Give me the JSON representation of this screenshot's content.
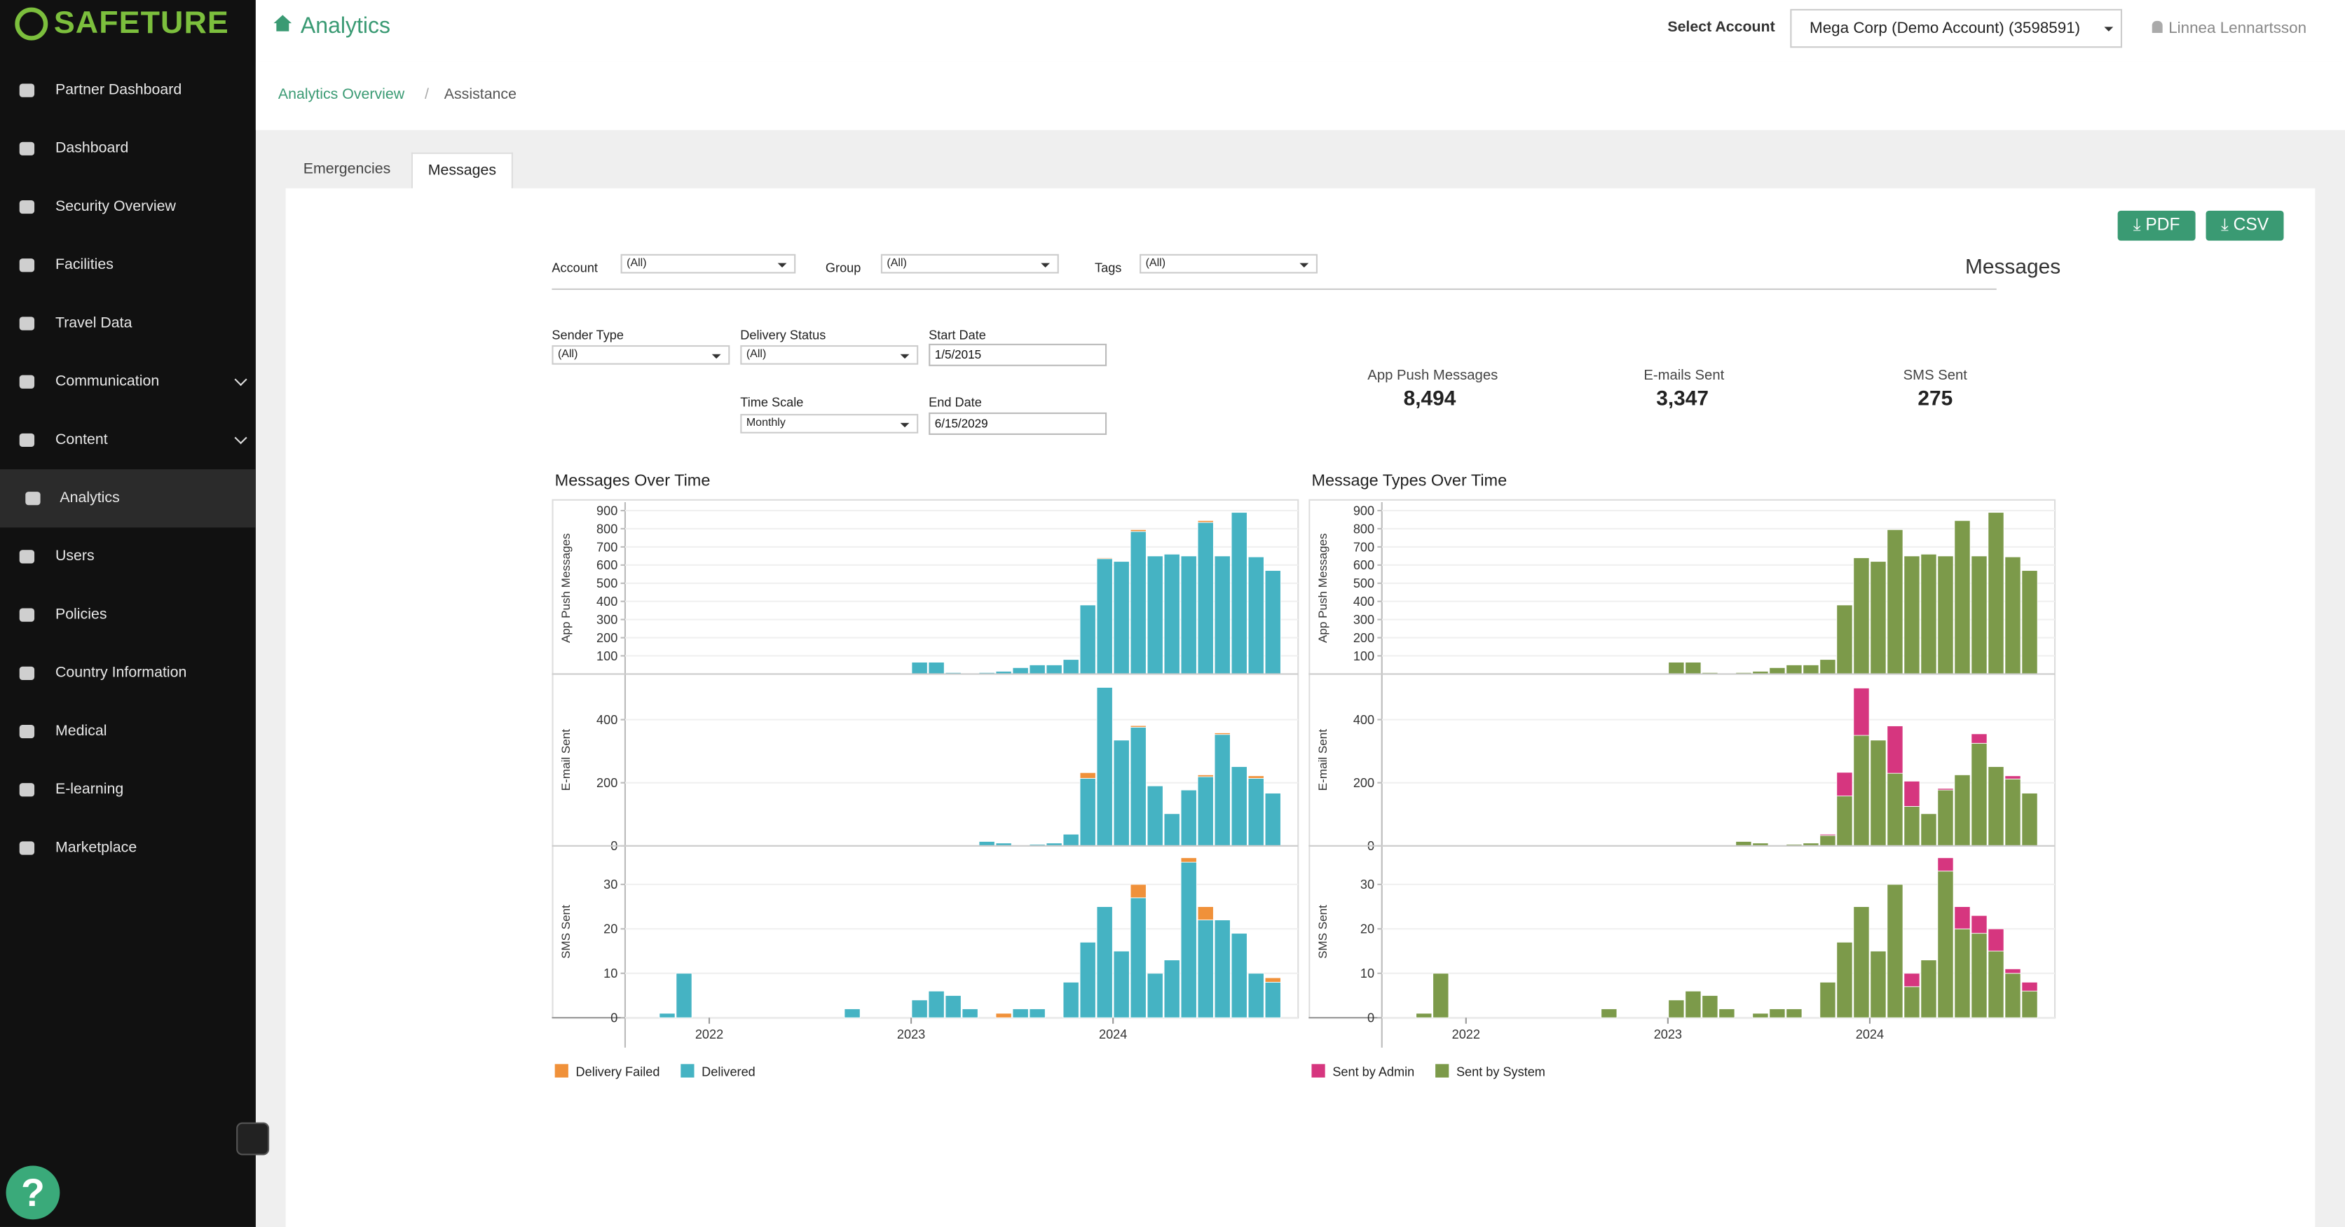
{
  "sidebar": {
    "logo": "SAFETURE",
    "items": [
      {
        "label": "Partner Dashboard"
      },
      {
        "label": "Dashboard"
      },
      {
        "label": "Security Overview"
      },
      {
        "label": "Facilities"
      },
      {
        "label": "Travel Data"
      },
      {
        "label": "Communication",
        "expandable": true
      },
      {
        "label": "Content",
        "expandable": true
      },
      {
        "label": "Analytics",
        "active": true
      },
      {
        "label": "Users"
      },
      {
        "label": "Policies"
      },
      {
        "label": "Country Information"
      },
      {
        "label": "Medical"
      },
      {
        "label": "E-learning"
      },
      {
        "label": "Marketplace"
      }
    ],
    "help": "?"
  },
  "header": {
    "title": "Analytics",
    "select_label": "Select Account",
    "account": "Mega Corp (Demo Account) (3598591)",
    "user": "Linnea Lennartsson"
  },
  "breadcrumb": [
    "Analytics Overview",
    "Assistance"
  ],
  "tabs": [
    "Emergencies",
    "Messages"
  ],
  "buttons": [
    "PDF",
    "CSV"
  ],
  "report_title": "Messages",
  "filters": [
    {
      "label": "Account",
      "value": "(All)"
    },
    {
      "label": "Group",
      "value": "(All)"
    },
    {
      "label": "Tags",
      "value": "(All)"
    },
    {
      "label": "Sender Type",
      "value": "(All)"
    },
    {
      "label": "Delivery Status",
      "value": "(All)"
    },
    {
      "label": "Start Date",
      "value": "1/5/2015"
    },
    {
      "label": "Time Scale",
      "value": "Monthly"
    },
    {
      "label": "End Date",
      "value": "6/15/2029"
    }
  ],
  "stats": [
    {
      "label": "App Push Messages",
      "value": "8,494"
    },
    {
      "label": "E-mails Sent",
      "value": "3,347"
    },
    {
      "label": "SMS Sent",
      "value": "275"
    }
  ],
  "charts": [
    {
      "type": "bar",
      "stacked": true,
      "title": "Messages Over Time",
      "categories": [
        null,
        null,
        null,
        null,
        null,
        "2022",
        null,
        null,
        null,
        null,
        null,
        null,
        null,
        null,
        null,
        null,
        null,
        "2023",
        null,
        null,
        null,
        null,
        null,
        null,
        null,
        null,
        null,
        null,
        null,
        "2024",
        null,
        null,
        null,
        null,
        null,
        null,
        null,
        null,
        null,
        null
      ],
      "series": [
        {
          "name": "Delivery Failed",
          "color": "#f0913a"
        },
        {
          "name": "Delivered",
          "color": "#45b3c3"
        }
      ],
      "panels": [
        {
          "ylabel": "App Push Messages",
          "ylim": [
            0,
            930
          ],
          "yticks": [
            100,
            200,
            300,
            400,
            500,
            600,
            700,
            800,
            900
          ],
          "series": [
            {
              "values": [
                0,
                0,
                0,
                0,
                0,
                0,
                0,
                0,
                0,
                0,
                0,
                0,
                0,
                0,
                0,
                0,
                0,
                0,
                0,
                0,
                0,
                0,
                0,
                0,
                0,
                0,
                0,
                0,
                5,
                0,
                10,
                0,
                0,
                0,
                10,
                0,
                0,
                0,
                0,
                0
              ]
            },
            {
              "values": [
                0,
                0,
                2,
                0,
                0,
                0,
                0,
                0,
                0,
                0,
                0,
                0,
                0,
                5,
                0,
                0,
                0,
                65,
                65,
                8,
                0,
                8,
                15,
                35,
                50,
                50,
                80,
                380,
                635,
                620,
                785,
                650,
                660,
                650,
                835,
                650,
                890,
                645,
                570,
                0
              ]
            }
          ]
        },
        {
          "ylabel": "E-mail Sent",
          "ylim": [
            0,
            535
          ],
          "yticks": [
            0,
            200,
            400
          ],
          "series": [
            {
              "values": [
                0,
                0,
                0,
                0,
                0,
                0,
                0,
                0,
                0,
                0,
                0,
                0,
                0,
                0,
                0,
                0,
                0,
                0,
                0,
                0,
                0,
                0,
                0,
                0,
                0,
                0,
                0,
                18,
                0,
                0,
                5,
                0,
                0,
                0,
                6,
                5,
                0,
                8,
                0,
                0
              ]
            },
            {
              "values": [
                0,
                0,
                0,
                0,
                0,
                0,
                0,
                0,
                0,
                0,
                0,
                0,
                0,
                0,
                0,
                0,
                0,
                0,
                0,
                0,
                0,
                14,
                9,
                0,
                5,
                9,
                37,
                214,
                502,
                335,
                376,
                190,
                102,
                177,
                219,
                353,
                251,
                214,
                167,
                0
              ]
            }
          ]
        },
        {
          "ylabel": "SMS Sent",
          "ylim": [
            0,
            38
          ],
          "yticks": [
            0,
            10,
            20,
            30
          ],
          "series": [
            {
              "values": [
                0,
                0,
                0,
                0,
                0,
                0,
                0,
                0,
                0,
                0,
                0,
                0,
                0,
                0,
                0,
                0,
                0,
                0,
                0,
                0,
                0,
                0,
                1,
                0,
                0,
                0,
                0,
                0,
                0,
                0,
                3,
                0,
                0,
                1,
                3,
                0,
                0,
                0,
                1,
                0
              ]
            },
            {
              "values": [
                0,
                0,
                1,
                10,
                0,
                0,
                0,
                0,
                0,
                0,
                0,
                0,
                0,
                2,
                0,
                0,
                0,
                4,
                6,
                5,
                2,
                0,
                0,
                2,
                2,
                0,
                8,
                17,
                25,
                15,
                27,
                10,
                13,
                35,
                22,
                22,
                19,
                10,
                8,
                0
              ]
            }
          ]
        }
      ]
    },
    {
      "type": "bar",
      "stacked": true,
      "title": "Message Types Over Time",
      "categories": [
        null,
        null,
        null,
        null,
        null,
        "2022",
        null,
        null,
        null,
        null,
        null,
        null,
        null,
        null,
        null,
        null,
        null,
        "2023",
        null,
        null,
        null,
        null,
        null,
        null,
        null,
        null,
        null,
        null,
        null,
        "2024",
        null,
        null,
        null,
        null,
        null,
        null,
        null,
        null,
        null,
        null
      ],
      "series": [
        {
          "name": "Sent by Admin",
          "color": "#d6367f"
        },
        {
          "name": "Sent by System",
          "color": "#7c9a4a"
        }
      ],
      "panels": [
        {
          "ylabel": "App Push Messages",
          "ylim": [
            0,
            930
          ],
          "yticks": [
            100,
            200,
            300,
            400,
            500,
            600,
            700,
            800,
            900
          ],
          "series": [
            {
              "values": [
                0,
                0,
                0,
                0,
                0,
                0,
                0,
                0,
                0,
                0,
                0,
                0,
                0,
                0,
                0,
                0,
                0,
                0,
                0,
                0,
                0,
                0,
                0,
                0,
                0,
                0,
                0,
                0,
                0,
                0,
                0,
                0,
                0,
                0,
                0,
                0,
                0,
                0,
                0,
                0
              ]
            },
            {
              "values": [
                0,
                0,
                2,
                0,
                0,
                0,
                0,
                0,
                0,
                0,
                0,
                0,
                0,
                5,
                0,
                0,
                0,
                65,
                65,
                8,
                0,
                8,
                15,
                35,
                50,
                50,
                80,
                380,
                640,
                620,
                795,
                650,
                660,
                650,
                845,
                650,
                890,
                645,
                570,
                0
              ]
            }
          ]
        },
        {
          "ylabel": "E-mail Sent",
          "ylim": [
            0,
            535
          ],
          "yticks": [
            0,
            200,
            400
          ],
          "series": [
            {
              "values": [
                0,
                0,
                0,
                0,
                0,
                0,
                0,
                0,
                0,
                0,
                0,
                0,
                0,
                0,
                0,
                0,
                0,
                0,
                0,
                0,
                0,
                0,
                0,
                0,
                0,
                0,
                4,
                75,
                150,
                0,
                150,
                80,
                0,
                5,
                0,
                30,
                0,
                10,
                0,
                0
              ]
            },
            {
              "values": [
                0,
                0,
                0,
                0,
                0,
                0,
                0,
                0,
                0,
                0,
                0,
                0,
                0,
                0,
                0,
                0,
                0,
                0,
                0,
                0,
                0,
                14,
                9,
                0,
                5,
                9,
                33,
                158,
                350,
                335,
                230,
                125,
                102,
                177,
                225,
                325,
                251,
                212,
                167,
                0
              ]
            }
          ]
        },
        {
          "ylabel": "SMS Sent",
          "ylim": [
            0,
            38
          ],
          "yticks": [
            0,
            10,
            20,
            30
          ],
          "series": [
            {
              "values": [
                0,
                0,
                0,
                0,
                0,
                0,
                0,
                0,
                0,
                0,
                0,
                0,
                0,
                0,
                0,
                0,
                0,
                0,
                0,
                0,
                0,
                0,
                0,
                0,
                0,
                0,
                0,
                0,
                0,
                0,
                0,
                3,
                0,
                3,
                5,
                4,
                5,
                1,
                2,
                0
              ]
            },
            {
              "values": [
                0,
                0,
                1,
                10,
                0,
                0,
                0,
                0,
                0,
                0,
                0,
                0,
                0,
                2,
                0,
                0,
                0,
                4,
                6,
                5,
                2,
                0,
                1,
                2,
                2,
                0,
                8,
                17,
                25,
                15,
                30,
                7,
                13,
                33,
                20,
                19,
                15,
                10,
                6,
                0
              ]
            }
          ]
        }
      ]
    }
  ]
}
